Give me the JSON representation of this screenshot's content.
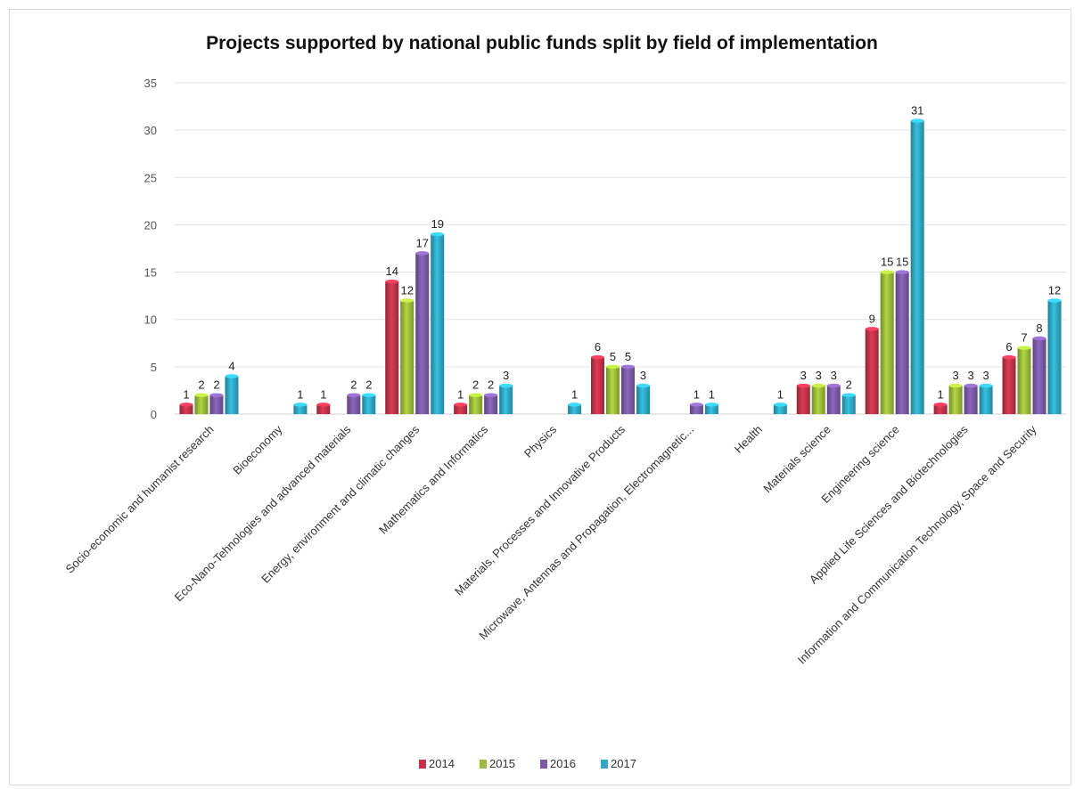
{
  "chart_data": {
    "type": "bar",
    "title": "Projects supported by national public funds split by field of implementation",
    "xlabel": "",
    "ylabel": "",
    "ylim": [
      0,
      35
    ],
    "yticks": [
      0,
      5,
      10,
      15,
      20,
      25,
      30,
      35
    ],
    "grid": true,
    "legend_position": "bottom",
    "categories": [
      "Socio-economic and humanist research",
      "Bioeconomy",
      "Eco-Nano-Tehnologies and advanced materials",
      "Energy, environment and climatic changes",
      "Mathematics and Informatics",
      "Physics",
      "Materials, Processes and Innovative Products",
      "Microwave, Antennas and Propagation, Electromagnetic...",
      "Health",
      "Materials science",
      "Engineering science",
      "Applied Life Sciences and Biotechnologies",
      "Information and Communication Technology, Space and Security"
    ],
    "series": [
      {
        "name": "2014",
        "color": "#c0334a",
        "values": [
          1,
          null,
          1,
          14,
          1,
          null,
          6,
          null,
          null,
          3,
          9,
          1,
          6
        ]
      },
      {
        "name": "2015",
        "color": "#9bbb39",
        "values": [
          2,
          null,
          null,
          12,
          2,
          null,
          5,
          null,
          null,
          3,
          15,
          3,
          7
        ]
      },
      {
        "name": "2016",
        "color": "#7b5aa6",
        "values": [
          2,
          null,
          2,
          17,
          2,
          null,
          5,
          1,
          null,
          3,
          15,
          3,
          8
        ]
      },
      {
        "name": "2017",
        "color": "#2fa8c4",
        "values": [
          4,
          1,
          2,
          19,
          3,
          1,
          3,
          1,
          1,
          2,
          31,
          3,
          12
        ]
      }
    ]
  }
}
